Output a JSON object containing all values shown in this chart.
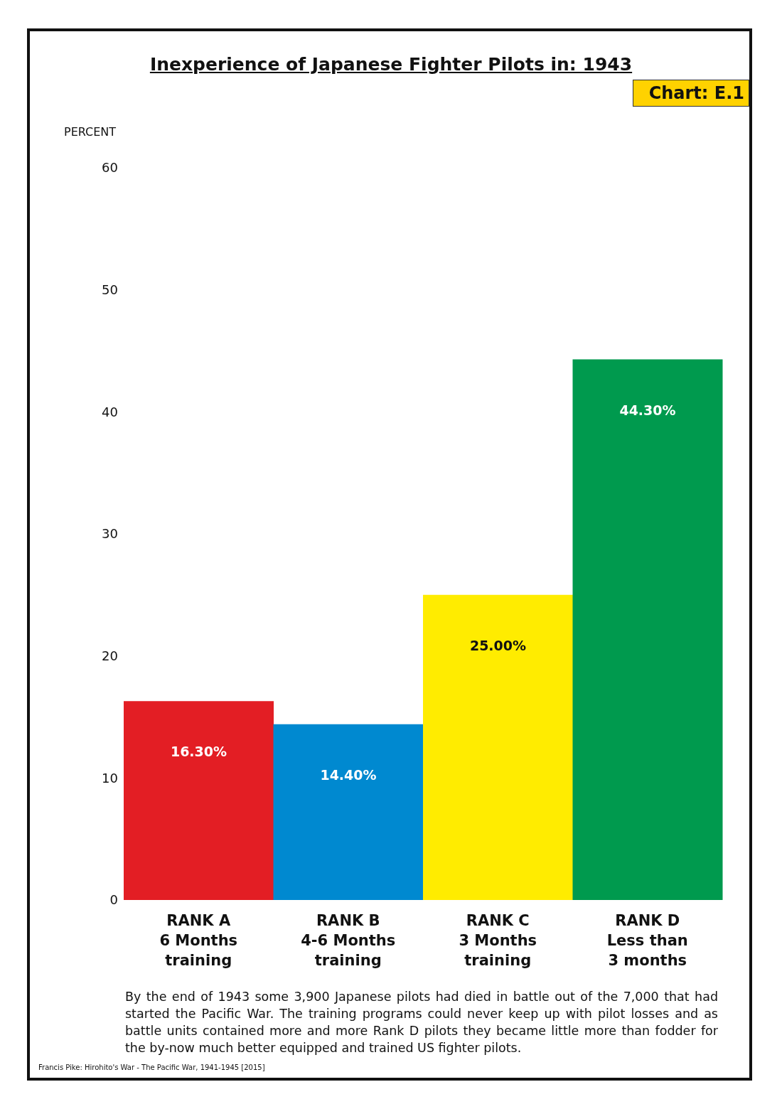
{
  "chart_data": {
    "type": "bar",
    "title": "Inexperience of Japanese Fighter Pilots in: 1943",
    "ylabel": "PERCENT",
    "categories": [
      "RANK A\n6 Months\ntraining",
      "RANK B\n4-6 Months\ntraining",
      "RANK C\n3 Months\ntraining",
      "RANK D\nLess than\n3 months"
    ],
    "values": [
      16.3,
      14.4,
      25.0,
      44.3
    ],
    "colors": [
      "#e31e24",
      "#0089d0",
      "#ffec00",
      "#009a4e"
    ],
    "value_labels": [
      "16.30%",
      "14.40%",
      "25.00%",
      "44.30%"
    ],
    "ylim": [
      0,
      60
    ],
    "yticks": [
      0,
      10,
      20,
      30,
      40,
      50,
      60
    ],
    "grid": false,
    "legend": false,
    "annotations": [
      "Chart: E.1",
      "By the end of 1943 some 3,900 Japanese pilots had died in battle out of the 7,000 that had started the Pacific War. The training programs could never keep up with pilot losses and as battle units contained more and more Rank D pilots they became little more than fodder for the by-now much better equipped and trained US fighter pilots.",
      "Francis Pike:  Hirohito's War - The Pacific War, 1941-1945  [2015]"
    ]
  }
}
